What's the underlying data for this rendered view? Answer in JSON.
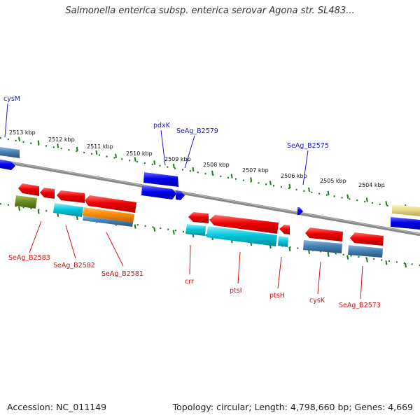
{
  "title": "Salmonella enterica subsp. enterica serovar Agona str. SL483...",
  "footer": {
    "accession": "Accession: NC_011149",
    "summary": "Topology: circular; Length: 4,798,660 bp; Genes: 4,669"
  },
  "scale_labels": [
    "2513 kbp",
    "2512 kbp",
    "2511 kbp",
    "2510 kbp",
    "2509 kbp",
    "2508 kbp",
    "2507 kbp",
    "2506 kbp",
    "2505 kbp",
    "2504 kbp"
  ],
  "forward_labels": [
    "cysM",
    "pdxK",
    "SeAg_B2579",
    "SeAg_B2575"
  ],
  "reverse_labels": [
    "SeAg_B2583",
    "SeAg_B2582",
    "SeAg_B2581",
    "crr",
    "ptsI",
    "ptsH",
    "cysK",
    "SeAg_B2573"
  ],
  "colors": {
    "forward_label": "#1a1acc",
    "reverse_label": "#cc1111",
    "backbone": "#888888",
    "tick": "#1f7a1f",
    "cds_forward": "#0000ee",
    "cds_reverse": "#ee0000",
    "rna": "#00bcd4",
    "feature_steel": "#4682b4",
    "feature_orange": "#ff8c00",
    "feature_olive": "#6b8e23",
    "feature_khaki": "#e8dc8c"
  }
}
